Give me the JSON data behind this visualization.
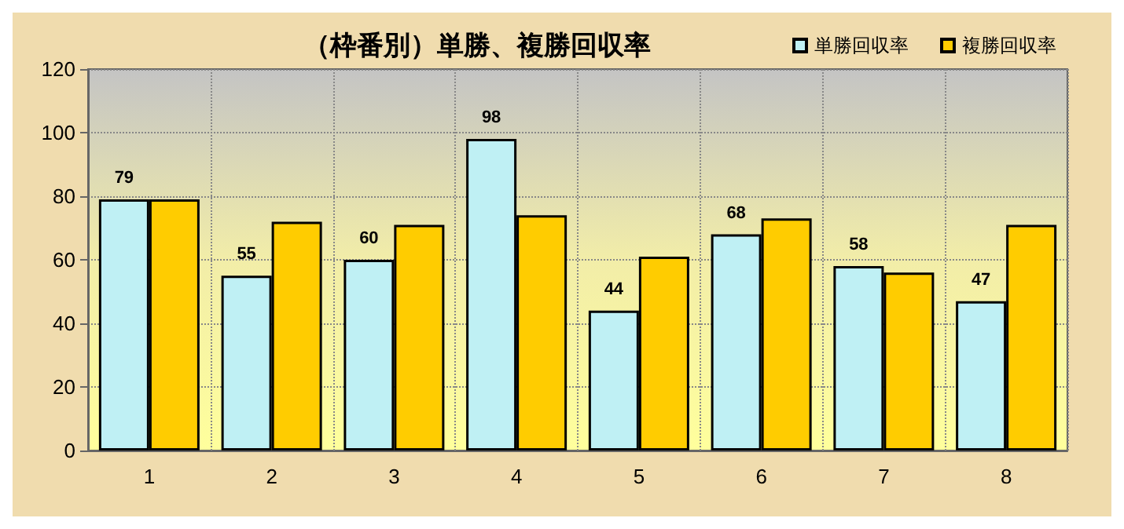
{
  "chart_data": {
    "type": "bar",
    "title": "（枠番別）単勝、複勝回収率",
    "categories": [
      "1",
      "2",
      "3",
      "4",
      "5",
      "6",
      "7",
      "8"
    ],
    "series": [
      {
        "name": "単勝回収率",
        "color": "#bff0f4",
        "values": [
          79,
          55,
          60,
          98,
          44,
          68,
          58,
          47
        ],
        "value_labels": [
          "79",
          "55",
          "60",
          "98",
          "44",
          "68",
          "58",
          "47"
        ]
      },
      {
        "name": "複勝回収率",
        "color": "#ffcc00",
        "values": [
          79,
          72,
          71,
          74,
          61,
          73,
          56,
          71
        ]
      }
    ],
    "ylim": [
      0,
      120
    ],
    "yticks": [
      0,
      20,
      40,
      60,
      80,
      100,
      120
    ],
    "grid": true,
    "legend": "top right"
  }
}
